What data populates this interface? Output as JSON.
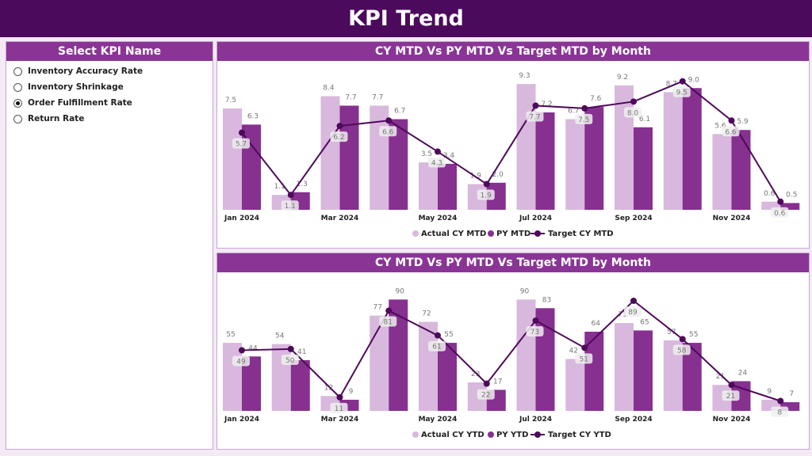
{
  "title": "KPI Trend",
  "slicer": {
    "title": "Select KPI Name",
    "options": [
      "Inventory Accuracy Rate",
      "Inventory Shrinkage",
      "Order Fulfillment Rate",
      "Return Rate"
    ],
    "selected": 2
  },
  "colors": {
    "actual": "#d8b8dd",
    "py": "#86308f",
    "target": "#4e0a5a"
  },
  "chart_data": [
    {
      "type": "bar",
      "title": "CY MTD Vs PY MTD Vs Target MTD by Month",
      "categories": [
        "Jan 2024",
        "Feb 2024",
        "Mar 2024",
        "Apr 2024",
        "May 2024",
        "Jun 2024",
        "Jul 2024",
        "Aug 2024",
        "Sep 2024",
        "Oct 2024",
        "Nov 2024",
        "Dec 2024"
      ],
      "tick_labels": [
        "Jan 2024",
        "",
        "Mar 2024",
        "",
        "May 2024",
        "",
        "Jul 2024",
        "",
        "Sep 2024",
        "",
        "Nov 2024",
        ""
      ],
      "ylim": [
        0,
        9.6
      ],
      "series": [
        {
          "name": "Actual CY MTD",
          "type": "bar",
          "values": [
            7.5,
            1.1,
            8.4,
            7.7,
            3.5,
            1.9,
            9.3,
            6.7,
            9.2,
            8.7,
            5.6,
            0.6
          ]
        },
        {
          "name": "PY MTD",
          "type": "bar",
          "values": [
            6.3,
            1.3,
            7.7,
            6.7,
            3.4,
            2.0,
            7.2,
            7.6,
            6.1,
            9.0,
            5.9,
            0.5
          ]
        },
        {
          "name": "Target CY MTD",
          "type": "line",
          "values": [
            5.7,
            1.1,
            6.2,
            6.6,
            4.3,
            1.9,
            7.7,
            7.5,
            8.0,
            9.5,
            6.6,
            0.6
          ]
        }
      ],
      "legend": "bottom"
    },
    {
      "type": "bar",
      "title": "CY MTD Vs PY MTD Vs Target MTD by Month",
      "categories": [
        "Jan 2024",
        "Feb 2024",
        "Mar 2024",
        "Apr 2024",
        "May 2024",
        "Jun 2024",
        "Jul 2024",
        "Aug 2024",
        "Sep 2024",
        "Oct 2024",
        "Nov 2024",
        "Dec 2024"
      ],
      "tick_labels": [
        "Jan 2024",
        "",
        "Mar 2024",
        "",
        "May 2024",
        "",
        "Jul 2024",
        "",
        "Sep 2024",
        "",
        "Nov 2024",
        ""
      ],
      "ylim": [
        0,
        96
      ],
      "series": [
        {
          "name": "Actual CY YTD",
          "type": "bar",
          "values": [
            55,
            54,
            12,
            77,
            72,
            23,
            90,
            42,
            71,
            57,
            21,
            9
          ]
        },
        {
          "name": "PY YTD",
          "type": "bar",
          "values": [
            44,
            41,
            9,
            90,
            55,
            17,
            83,
            64,
            65,
            55,
            24,
            7
          ]
        },
        {
          "name": "Target CY YTD",
          "type": "line",
          "values": [
            49,
            50,
            11,
            81,
            61,
            22,
            73,
            51,
            89,
            58,
            21,
            8
          ]
        }
      ],
      "legend": "bottom"
    }
  ]
}
